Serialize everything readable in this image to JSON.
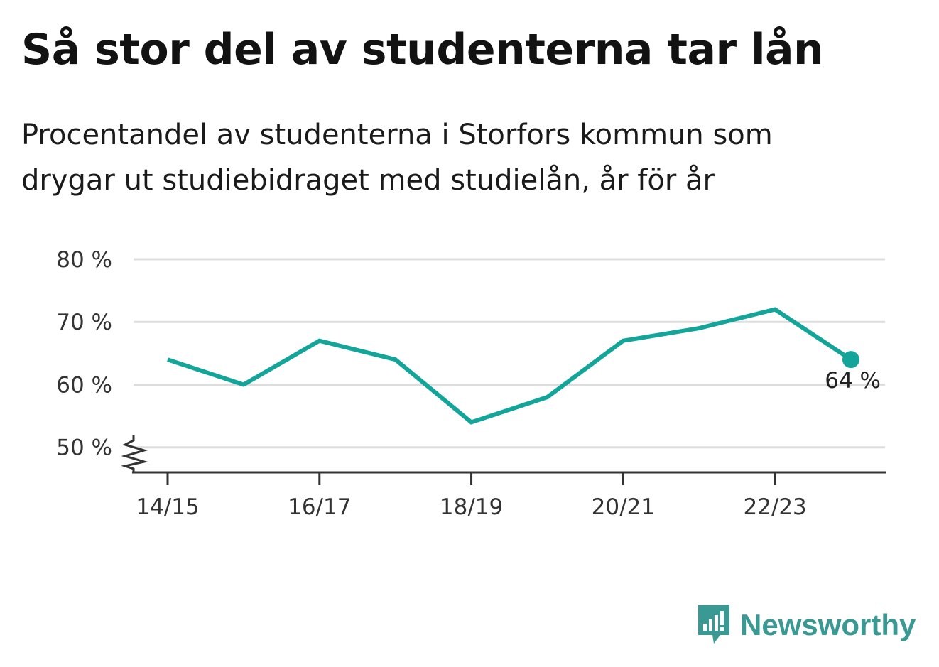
{
  "title": "Så stor del av studenterna tar lån",
  "subtitle": "Procentandel av studenterna i Storfors kommun som drygar ut studiebidraget med studielån, år för år",
  "brand": {
    "name": "Newsworthy",
    "color": "#3a9a93"
  },
  "chart_data": {
    "type": "line",
    "x": [
      "14/15",
      "15/16",
      "16/17",
      "17/18",
      "18/19",
      "19/20",
      "20/21",
      "21/22",
      "22/23",
      "23/24"
    ],
    "x_tick_labels": [
      "14/15",
      "16/17",
      "18/19",
      "20/21",
      "22/23"
    ],
    "series": [
      {
        "values": [
          64,
          60,
          67,
          64,
          54,
          58,
          67,
          69,
          72,
          64
        ],
        "color": "#13a59a"
      }
    ],
    "y_ticks": [
      50,
      60,
      70,
      80
    ],
    "y_tick_labels": [
      "50 %",
      "60 %",
      "70 %",
      "80 %"
    ],
    "ylim": [
      46,
      80
    ],
    "y_axis_break": true,
    "grid": true,
    "end_label": "64 %"
  }
}
